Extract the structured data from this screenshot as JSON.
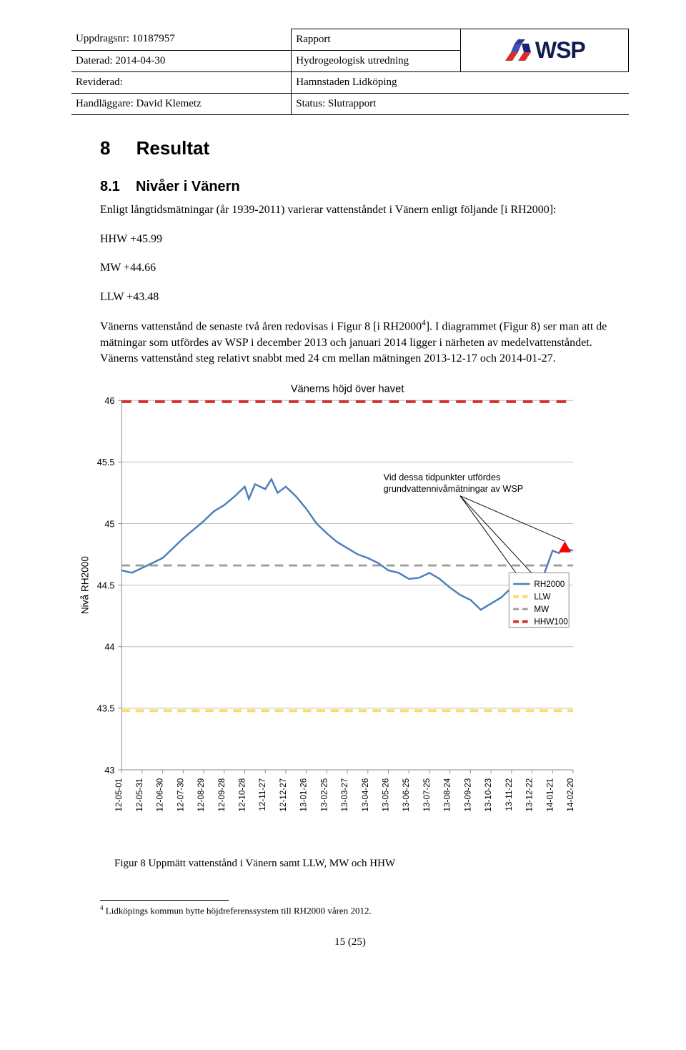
{
  "header": {
    "uppdragsnr_label": "Uppdragsnr: 10187957",
    "daterad_label": "Daterad: 2014-04-30",
    "reviderad_label": "Reviderad:",
    "handlaggare_label": "Handläggare: David Klemetz",
    "rapport": "Rapport",
    "hydrogeologisk": "Hydrogeologisk utredning",
    "hamnstaden": "Hamnstaden Lidköping",
    "status": "Status: Slutrapport",
    "logo_text": "WSP"
  },
  "section": {
    "number": "8",
    "title": "Resultat",
    "sub_number": "8.1",
    "sub_title": "Nivåer i Vänern"
  },
  "body": {
    "intro": "Enligt långtidsmätningar (år 1939-2011) varierar vattenståndet i Vänern enligt följande [i RH2000]:",
    "hhw": "HHW +45.99",
    "mw": "MW +44.66",
    "llw": "LLW +43.48",
    "para2": "Vänerns vattenstånd de senaste två åren redovisas i Figur 8 [i RH2000",
    "sup": "4",
    "para2b": "]. I diagrammet (Figur 8) ser man att de mätningar som utfördes av WSP i december 2013 och januari 2014 ligger i närheten av medelvattenståndet. Vänerns vattenstånd steg relativt snabbt med 24 cm mellan mätningen 2013-12-17 och 2014-01-27."
  },
  "chart": {
    "title": "Vänerns höjd över havet",
    "annotation": "Vid dessa tidpunkter utfördes grundvattennivåmätningar av WSP",
    "ylabel": "Nivå RH2000",
    "ylim": [
      43,
      46
    ],
    "ytick_step": 0.5,
    "yticks": [
      "43",
      "43.5",
      "44",
      "44.5",
      "45",
      "45.5",
      "46"
    ],
    "xticks": [
      "12-05-01",
      "12-05-31",
      "12-06-30",
      "12-07-30",
      "12-08-29",
      "12-09-28",
      "12-10-28",
      "12-11-27",
      "12-12-27",
      "13-01-26",
      "13-02-25",
      "13-03-27",
      "13-04-26",
      "13-05-26",
      "13-06-25",
      "13-07-25",
      "13-08-24",
      "13-09-23",
      "13-10-23",
      "13-11-22",
      "13-12-22",
      "14-01-21",
      "14-02-20"
    ],
    "hhw_value": 45.99,
    "mw_value": 44.66,
    "llw_value": 43.48,
    "colors": {
      "rh2000": "#4a7ebb",
      "llw": "#ffd966",
      "mw": "#9e9e9e",
      "hhw": "#d32f2f",
      "grid": "#bfbfbf",
      "text": "#000000",
      "axis": "#8a8a8a",
      "marker": "#ff0000",
      "annotation_line": "#000000",
      "background": "#ffffff"
    },
    "legend": {
      "rh2000": "RH2000",
      "llw": "LLW",
      "mw": "MW",
      "hhw": "HHW100"
    },
    "rh2000_series": [
      [
        0,
        44.62
      ],
      [
        0.5,
        44.6
      ],
      [
        1,
        44.64
      ],
      [
        1.5,
        44.68
      ],
      [
        2,
        44.72
      ],
      [
        2.5,
        44.8
      ],
      [
        3,
        44.88
      ],
      [
        3.5,
        44.95
      ],
      [
        4,
        45.02
      ],
      [
        4.5,
        45.1
      ],
      [
        5,
        45.15
      ],
      [
        5.5,
        45.22
      ],
      [
        6,
        45.3
      ],
      [
        6.2,
        45.2
      ],
      [
        6.5,
        45.32
      ],
      [
        7,
        45.28
      ],
      [
        7.3,
        45.36
      ],
      [
        7.6,
        45.25
      ],
      [
        8,
        45.3
      ],
      [
        8.5,
        45.22
      ],
      [
        9,
        45.12
      ],
      [
        9.5,
        45.0
      ],
      [
        10,
        44.92
      ],
      [
        10.5,
        44.85
      ],
      [
        11,
        44.8
      ],
      [
        11.5,
        44.75
      ],
      [
        12,
        44.72
      ],
      [
        12.5,
        44.68
      ],
      [
        13,
        44.62
      ],
      [
        13.5,
        44.6
      ],
      [
        14,
        44.55
      ],
      [
        14.5,
        44.56
      ],
      [
        15,
        44.6
      ],
      [
        15.5,
        44.55
      ],
      [
        16,
        44.48
      ],
      [
        16.5,
        44.42
      ],
      [
        17,
        44.38
      ],
      [
        17.5,
        44.3
      ],
      [
        18,
        44.35
      ],
      [
        18.5,
        44.4
      ],
      [
        19,
        44.48
      ],
      [
        19.5,
        44.5
      ],
      [
        20,
        44.52
      ],
      [
        20.5,
        44.55
      ],
      [
        21,
        44.78
      ],
      [
        21.3,
        44.76
      ],
      [
        21.6,
        44.8
      ],
      [
        22,
        44.78
      ]
    ],
    "wsp_markers": [
      [
        19.4,
        44.5
      ],
      [
        20.1,
        44.52
      ],
      [
        21.6,
        44.8
      ]
    ]
  },
  "caption": "Figur 8 Uppmätt vattenstånd i Vänern samt LLW, MW och HHW",
  "footnote": {
    "marker": "4",
    "text": " Lidköpings kommun bytte höjdreferenssystem till RH2000 våren 2012."
  },
  "page_number": "15 (25)"
}
